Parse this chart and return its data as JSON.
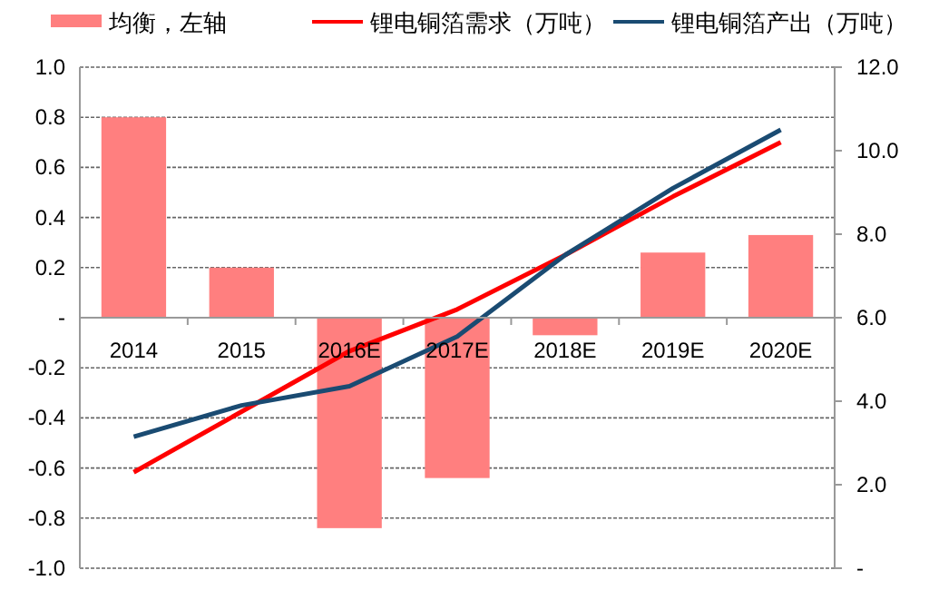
{
  "chart_data": {
    "type": "bar",
    "categories": [
      "2014",
      "2015",
      "2016E",
      "2017E",
      "2018E",
      "2019E",
      "2020E"
    ],
    "series": [
      {
        "name": "均衡，左轴",
        "color": "#ff7f7f",
        "values": [
          0.8,
          0.2,
          -0.84,
          -0.64,
          -0.07,
          0.26,
          0.33
        ]
      },
      {
        "name": "锂电铜箔需求（万吨）",
        "type": "line",
        "axis": "y2",
        "color": "#ff0000",
        "values": [
          2.3,
          3.75,
          5.2,
          6.2,
          7.5,
          8.9,
          10.2
        ]
      },
      {
        "name": "锂电铜箔产出（万吨）",
        "type": "line",
        "axis": "y2",
        "color": "#1a4b72",
        "values": [
          3.15,
          3.9,
          4.36,
          5.55,
          7.5,
          9.1,
          10.5
        ]
      }
    ],
    "ylim": [
      -1.0,
      1.0
    ],
    "yticks": [
      {
        "value": -1.0,
        "label": "-1.0"
      },
      {
        "value": -0.8,
        "label": "-0.8"
      },
      {
        "value": -0.6,
        "label": "-0.6"
      },
      {
        "value": -0.4,
        "label": "-0.4"
      },
      {
        "value": -0.2,
        "label": "-0.2"
      },
      {
        "value": 0,
        "label": "-"
      },
      {
        "value": 0.2,
        "label": "0.2"
      },
      {
        "value": 0.4,
        "label": "0.4"
      },
      {
        "value": 0.6,
        "label": "0.6"
      },
      {
        "value": 0.8,
        "label": "0.8"
      },
      {
        "value": 1.0,
        "label": "1.0"
      }
    ],
    "y2lim": [
      0,
      12.0
    ],
    "y2ticks": [
      {
        "value": 0,
        "label": "-"
      },
      {
        "value": 2,
        "label": "2.0"
      },
      {
        "value": 4,
        "label": "4.0"
      },
      {
        "value": 6,
        "label": "6.0"
      },
      {
        "value": 8,
        "label": "8.0"
      },
      {
        "value": 10,
        "label": "10.0"
      },
      {
        "value": 12,
        "label": "12.0"
      }
    ],
    "grid": "y",
    "legend": "top",
    "line_style": "solid",
    "marker": "none"
  }
}
